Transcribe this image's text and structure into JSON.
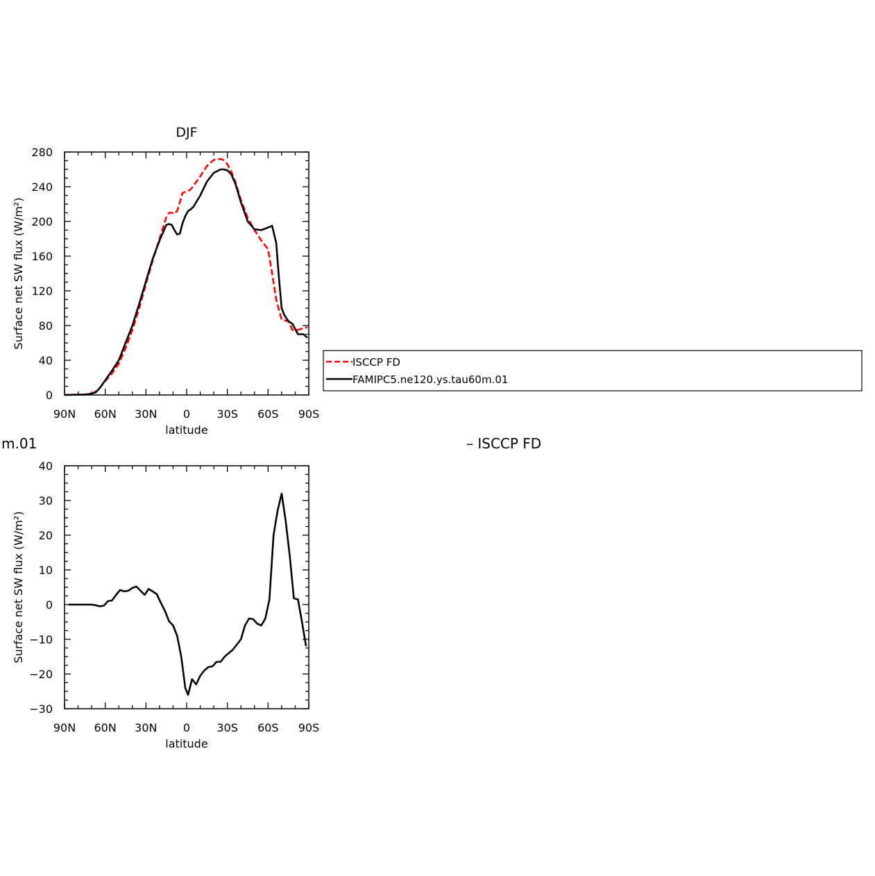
{
  "colors": {
    "isccp": "#ff0000",
    "model": "#000000",
    "axis": "#000000"
  },
  "legend": {
    "entries": [
      {
        "label": "ISCCP FD",
        "color": "#ff0000",
        "dash": "dashed"
      },
      {
        "label": "FAMIPC5.ne120.ys.tau60m.01",
        "color": "#000000",
        "dash": "solid"
      }
    ]
  },
  "fragments": {
    "left_label": "m.01",
    "right_label": "– ISCCP FD"
  },
  "chart_data": [
    {
      "type": "line",
      "title": "DJF",
      "xlabel": "latitude",
      "ylabel": "Surface net SW flux (W/m²)",
      "xlim": [
        -90,
        90
      ],
      "ylim": [
        0,
        280
      ],
      "xticks": [
        -90,
        -60,
        -30,
        0,
        30,
        60,
        90
      ],
      "xtick_labels": [
        "90N",
        "60N",
        "30N",
        "0",
        "30S",
        "60S",
        "90S"
      ],
      "yticks": [
        0,
        40,
        80,
        120,
        160,
        200,
        240,
        280
      ],
      "ytick_labels": [
        "0",
        "40",
        "80",
        "120",
        "160",
        "200",
        "240",
        "280"
      ],
      "series": [
        {
          "name": "ISCCP FD",
          "color": "#ff0000",
          "dash": "dashed",
          "x": [
            -90,
            -75,
            -70,
            -67,
            -64,
            -60,
            -55,
            -50,
            -45,
            -40,
            -35,
            -30,
            -25,
            -20,
            -15,
            -13,
            -11,
            -9,
            -7,
            -5,
            -3,
            -1,
            1,
            3,
            5,
            10,
            15,
            20,
            25,
            27,
            30,
            33,
            36,
            40,
            45,
            50,
            55,
            60,
            63,
            66,
            68,
            70,
            72,
            75,
            78,
            82,
            86,
            89
          ],
          "y": [
            0,
            0.5,
            1.5,
            4,
            8,
            16,
            25,
            36,
            54,
            75,
            100,
            128,
            155,
            180,
            205,
            210,
            210,
            209,
            212,
            222,
            233,
            234,
            235,
            237,
            241,
            252,
            264,
            271,
            272,
            271,
            266,
            257,
            245,
            225,
            204,
            190,
            178,
            168,
            140,
            110,
            98,
            87,
            86,
            85,
            75,
            75,
            77,
            78
          ]
        },
        {
          "name": "FAMIPC5.ne120.ys.tau60m.01",
          "color": "#000000",
          "dash": "solid",
          "x": [
            -90,
            -75,
            -70,
            -67,
            -64,
            -60,
            -55,
            -50,
            -45,
            -40,
            -35,
            -30,
            -25,
            -20,
            -15,
            -13,
            -11,
            -9,
            -7,
            -5,
            -3,
            -1,
            1,
            3,
            5,
            10,
            15,
            20,
            25,
            27,
            30,
            33,
            36,
            40,
            45,
            50,
            55,
            60,
            63,
            66,
            68,
            70,
            72,
            75,
            78,
            82,
            86,
            89
          ],
          "y": [
            0,
            0.5,
            1.5,
            3,
            8,
            17,
            28,
            40,
            60,
            80,
            105,
            131,
            157,
            178,
            196,
            197,
            196,
            190,
            185,
            186,
            198,
            206,
            212,
            214,
            217,
            230,
            246,
            256,
            260,
            260,
            259,
            254,
            243,
            222,
            200,
            191,
            190,
            193,
            195,
            175,
            135,
            100,
            92,
            85,
            82,
            70,
            70,
            66
          ]
        }
      ]
    },
    {
      "type": "line",
      "title": "",
      "xlabel": "latitude",
      "ylabel": "Surface net SW flux (W/m²)",
      "xlim": [
        -90,
        90
      ],
      "ylim": [
        -30,
        40
      ],
      "xticks": [
        -90,
        -60,
        -30,
        0,
        30,
        60,
        90
      ],
      "xtick_labels": [
        "90N",
        "60N",
        "30N",
        "0",
        "30S",
        "60S",
        "90S"
      ],
      "yticks": [
        -30,
        -20,
        -10,
        0,
        10,
        20,
        30,
        40
      ],
      "ytick_labels": [
        "−30",
        "−20",
        "−10",
        "0",
        "10",
        "20",
        "30",
        "40"
      ],
      "series": [
        {
          "color": "#000000",
          "dash": "solid",
          "x": [
            -87,
            -80,
            -70,
            -67,
            -64,
            -61,
            -58,
            -55,
            -52,
            -49,
            -46,
            -43,
            -40,
            -37,
            -34,
            -31,
            -28,
            -25,
            -22,
            -19,
            -16,
            -13,
            -10,
            -7,
            -4,
            -1,
            1,
            4,
            7,
            10,
            13,
            16,
            19,
            22,
            25,
            28,
            31,
            34,
            37,
            40,
            43,
            46,
            49,
            52,
            55,
            58,
            61,
            64,
            67,
            70,
            73,
            76,
            79,
            82,
            85,
            88
          ],
          "y": [
            0,
            0,
            0,
            -0.2,
            -0.5,
            -0.3,
            1,
            1.2,
            2.8,
            4.2,
            3.8,
            4,
            4.8,
            5.2,
            4,
            2.8,
            4.5,
            3.8,
            3,
            0.5,
            -1.8,
            -4.8,
            -6,
            -9,
            -15,
            -24,
            -26,
            -21.5,
            -23,
            -20.5,
            -19,
            -18,
            -17.8,
            -16.5,
            -16.5,
            -15,
            -14,
            -13,
            -11.5,
            -10,
            -6,
            -4,
            -4.2,
            -5.5,
            -6,
            -4,
            1.5,
            20,
            27,
            32,
            24,
            14,
            1.8,
            1.5,
            -5,
            -12
          ]
        }
      ]
    }
  ]
}
